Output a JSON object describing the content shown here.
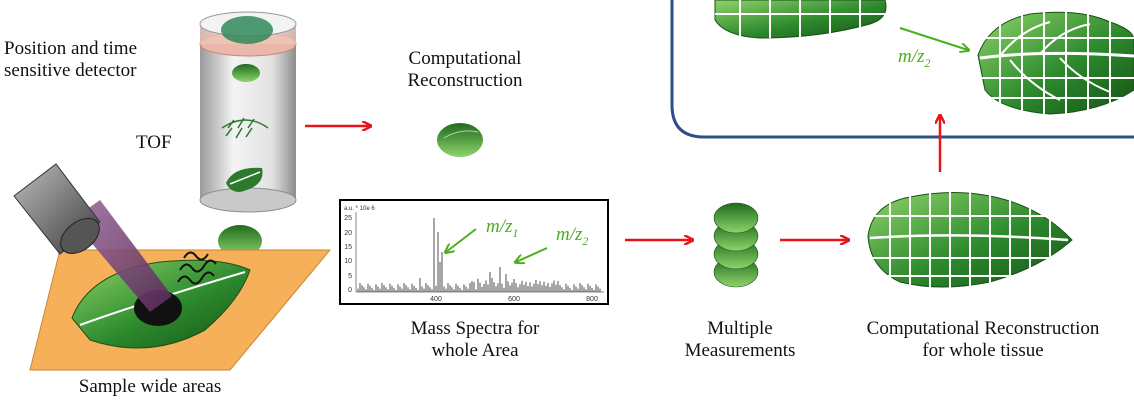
{
  "labels": {
    "detector_line1": "Position and time",
    "detector_line2": "sensitive detector",
    "tof": "TOF",
    "comp_recon_line1": "Computational",
    "comp_recon_line2": "Reconstruction",
    "mass_spectra_line1": "Mass Spectra for",
    "mass_spectra_line2": "whole Area",
    "multiple_line1": "Multiple",
    "multiple_line2": "Measurements",
    "comp_recon_tissue_line1": "Computational Reconstruction",
    "comp_recon_tissue_line2": "for whole tissue",
    "sample": "Sample wide areas"
  },
  "spectrum": {
    "y_axis_title": "a.u. * 10e 6",
    "y_ticks": [
      "25",
      "20",
      "15",
      "10",
      "5",
      "0"
    ],
    "x_ticks": [
      "400",
      "600",
      "800"
    ],
    "annotation_1": {
      "mz": "m/z",
      "sub": "1"
    },
    "annotation_2": {
      "mz": "m/z",
      "sub": "2"
    }
  },
  "inset": {
    "annotation": {
      "mz": "m/z",
      "sub": "2"
    }
  },
  "colors": {
    "arrow": "#e8141a",
    "leaf_dark": "#1e6b1e",
    "leaf_light": "#8fd46a",
    "inset_border": "#2c4f8a",
    "sample_plate": "#f6b05a",
    "annotation": "#4cae1e"
  }
}
